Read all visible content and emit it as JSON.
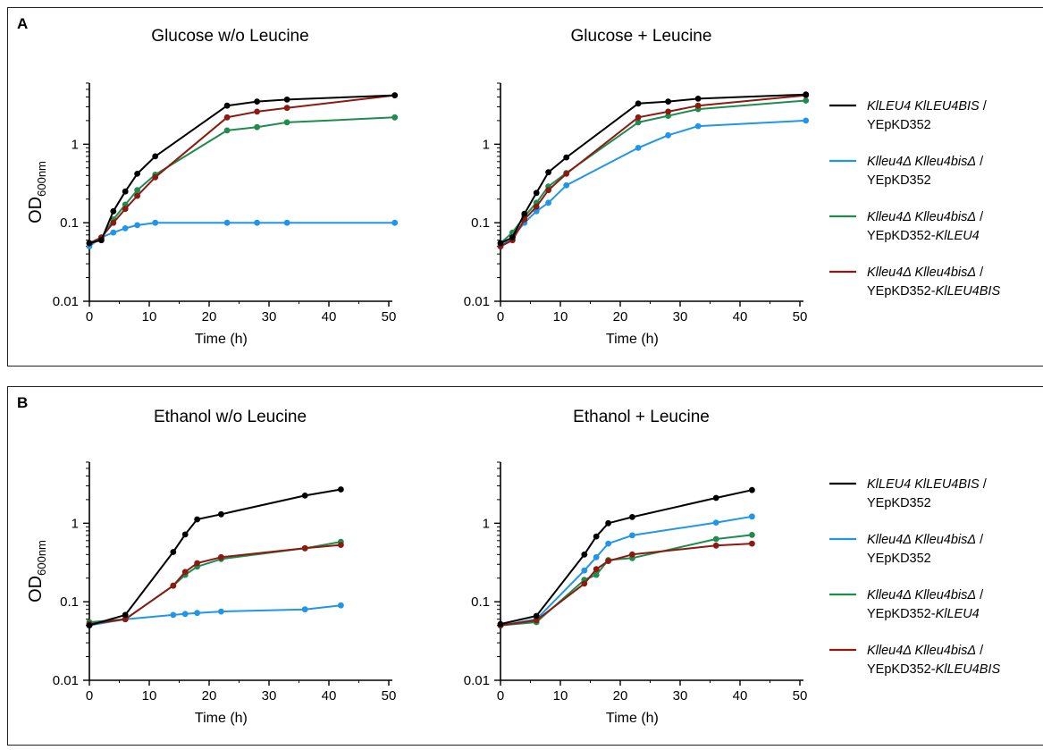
{
  "panels": [
    {
      "letter": "A"
    },
    {
      "letter": "B"
    }
  ],
  "axis": {
    "ylabel_main": "OD",
    "ylabel_sub": "600nm",
    "xlabel": "Time (h)",
    "x_ticks": [
      "0",
      "10",
      "20",
      "30",
      "40",
      "50"
    ],
    "y_ticks": [
      "0.01",
      "0.1",
      "1"
    ]
  },
  "legend": [
    {
      "color": "#000000",
      "line1_italic": "KlLEU4 KlLEU4BIS",
      "line1_plain": " /",
      "line2_plain": "YEpKD352",
      "line2_italic": ""
    },
    {
      "color": "#2196e8",
      "line1_italic": "Klleu4Δ Klleu4bisΔ",
      "line1_plain": " /",
      "line2_plain": "YEpKD352",
      "line2_italic": ""
    },
    {
      "color": "#1e8c4e",
      "line1_italic": "Klleu4Δ Klleu4bisΔ",
      "line1_plain": " /",
      "line2_plain": "YEpKD352-",
      "line2_italic": "KlLEU4"
    },
    {
      "color": "#8b1a10",
      "line1_italic": "Klleu4Δ Klleu4bisΔ",
      "line1_plain": " /",
      "line2_plain": "YEpKD352-",
      "line2_italic": "KlLEU4BIS"
    }
  ],
  "chart_data": [
    {
      "type": "line",
      "title": "Glucose w/o Leucine",
      "xlabel": "Time (h)",
      "ylabel": "OD600nm",
      "xlim": [
        0,
        52
      ],
      "ylim": [
        0.01,
        6
      ],
      "yscale": "log",
      "series": [
        {
          "color": "#000000",
          "x": [
            0,
            2,
            4,
            6,
            8,
            11,
            23,
            28,
            33,
            51
          ],
          "y": [
            0.055,
            0.06,
            0.14,
            0.25,
            0.42,
            0.7,
            3.1,
            3.5,
            3.7,
            4.2
          ]
        },
        {
          "color": "#2196e8",
          "x": [
            0,
            2,
            4,
            6,
            8,
            11,
            23,
            28,
            33,
            51
          ],
          "y": [
            0.05,
            0.065,
            0.075,
            0.085,
            0.093,
            0.1,
            0.1,
            0.1,
            0.1,
            0.1
          ]
        },
        {
          "color": "#1e8c4e",
          "x": [
            0,
            2,
            4,
            6,
            8,
            11,
            23,
            28,
            33,
            51
          ],
          "y": [
            0.055,
            0.063,
            0.11,
            0.17,
            0.26,
            0.41,
            1.5,
            1.65,
            1.9,
            2.2
          ]
        },
        {
          "color": "#8b1a10",
          "x": [
            0,
            2,
            4,
            6,
            8,
            11,
            23,
            28,
            33,
            51
          ],
          "y": [
            0.055,
            0.065,
            0.1,
            0.15,
            0.22,
            0.38,
            2.2,
            2.6,
            2.9,
            4.2
          ]
        }
      ]
    },
    {
      "type": "line",
      "title": "Glucose + Leucine",
      "xlabel": "Time (h)",
      "ylabel": "OD600nm",
      "xlim": [
        0,
        52
      ],
      "ylim": [
        0.01,
        6
      ],
      "yscale": "log",
      "series": [
        {
          "color": "#000000",
          "x": [
            0,
            2,
            4,
            6,
            8,
            11,
            23,
            28,
            33,
            51
          ],
          "y": [
            0.055,
            0.065,
            0.13,
            0.24,
            0.44,
            0.68,
            3.3,
            3.5,
            3.8,
            4.3
          ]
        },
        {
          "color": "#2196e8",
          "x": [
            0,
            2,
            4,
            6,
            8,
            11,
            23,
            28,
            33,
            51
          ],
          "y": [
            0.05,
            0.065,
            0.1,
            0.14,
            0.18,
            0.3,
            0.9,
            1.3,
            1.7,
            2.0
          ]
        },
        {
          "color": "#1e8c4e",
          "x": [
            0,
            2,
            4,
            6,
            8,
            11,
            23,
            28,
            33,
            51
          ],
          "y": [
            0.055,
            0.075,
            0.12,
            0.18,
            0.29,
            0.43,
            1.9,
            2.3,
            2.8,
            3.6
          ]
        },
        {
          "color": "#8b1a10",
          "x": [
            0,
            2,
            4,
            6,
            8,
            11,
            23,
            28,
            33,
            51
          ],
          "y": [
            0.05,
            0.06,
            0.11,
            0.16,
            0.26,
            0.42,
            2.2,
            2.6,
            3.1,
            4.2
          ]
        }
      ]
    },
    {
      "type": "line",
      "title": "Ethanol w/o Leucine",
      "xlabel": "Time (h)",
      "ylabel": "OD600nm",
      "xlim": [
        0,
        52
      ],
      "ylim": [
        0.01,
        6
      ],
      "yscale": "log",
      "series": [
        {
          "color": "#000000",
          "x": [
            0,
            6,
            14,
            16,
            18,
            22,
            36,
            42
          ],
          "y": [
            0.05,
            0.068,
            0.43,
            0.72,
            1.12,
            1.3,
            2.25,
            2.7
          ]
        },
        {
          "color": "#2196e8",
          "x": [
            0,
            6,
            14,
            16,
            18,
            22,
            36,
            42
          ],
          "y": [
            0.05,
            0.06,
            0.068,
            0.07,
            0.072,
            0.075,
            0.08,
            0.09
          ]
        },
        {
          "color": "#1e8c4e",
          "x": [
            0,
            6,
            14,
            16,
            18,
            22,
            36,
            42
          ],
          "y": [
            0.055,
            0.06,
            0.16,
            0.22,
            0.28,
            0.35,
            0.48,
            0.58
          ]
        },
        {
          "color": "#8b1a10",
          "x": [
            0,
            6,
            14,
            16,
            18,
            22,
            36,
            42
          ],
          "y": [
            0.052,
            0.06,
            0.16,
            0.24,
            0.31,
            0.37,
            0.48,
            0.53
          ]
        }
      ]
    },
    {
      "type": "line",
      "title": "Ethanol + Leucine",
      "xlabel": "Time (h)",
      "ylabel": "OD600nm",
      "xlim": [
        0,
        52
      ],
      "ylim": [
        0.01,
        6
      ],
      "yscale": "log",
      "series": [
        {
          "color": "#000000",
          "x": [
            0,
            6,
            14,
            16,
            18,
            22,
            36,
            42
          ],
          "y": [
            0.052,
            0.066,
            0.4,
            0.68,
            1.0,
            1.2,
            2.1,
            2.65
          ]
        },
        {
          "color": "#2196e8",
          "x": [
            0,
            6,
            14,
            16,
            18,
            22,
            36,
            42
          ],
          "y": [
            0.05,
            0.06,
            0.25,
            0.37,
            0.55,
            0.7,
            1.02,
            1.22
          ]
        },
        {
          "color": "#1e8c4e",
          "x": [
            0,
            6,
            14,
            16,
            18,
            22,
            36,
            42
          ],
          "y": [
            0.05,
            0.055,
            0.19,
            0.22,
            0.34,
            0.36,
            0.63,
            0.71
          ]
        },
        {
          "color": "#8b1a10",
          "x": [
            0,
            6,
            14,
            16,
            18,
            22,
            36,
            42
          ],
          "y": [
            0.05,
            0.058,
            0.17,
            0.26,
            0.33,
            0.4,
            0.52,
            0.55
          ]
        }
      ]
    }
  ]
}
